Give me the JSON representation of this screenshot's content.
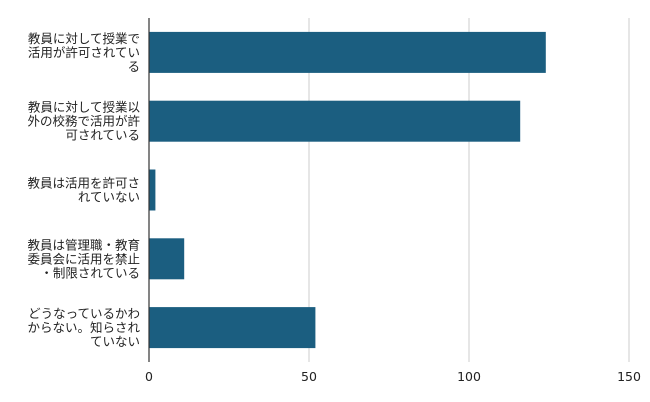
{
  "colors": {
    "bar": "#1b5e80",
    "grid": "#cccccc",
    "axis": "#333333",
    "text": "#222222",
    "background": "#ffffff"
  },
  "chart_data": {
    "type": "bar",
    "orientation": "horizontal",
    "title": "",
    "xlabel": "",
    "ylabel": "",
    "categories": [
      "教員に対して授業で活用が許可されている",
      "教員に対して授業以外の校務で活用が許可されている",
      "教員は活用を許可されていない",
      "教員は管理職・教育委員会に活用を禁止・制限されている",
      "どうなっているかわからない。知らされていない"
    ],
    "category_lines": [
      [
        "教員に対して授業で",
        "活用が許可されてい",
        "る"
      ],
      [
        "教員に対して授業以",
        "外の校務で活用が許",
        "可されている"
      ],
      [
        "教員は活用を許可さ",
        "れていない"
      ],
      [
        "教員は管理職・教育",
        "委員会に活用を禁止",
        "・制限されている"
      ],
      [
        "どうなっているかわ",
        "からない。知らされ",
        "ていない"
      ]
    ],
    "values": [
      124,
      116,
      2,
      11,
      52
    ],
    "xlim": [
      0,
      150
    ],
    "xticks": [
      0,
      50,
      100,
      150
    ],
    "grid": true,
    "legend": "none"
  }
}
